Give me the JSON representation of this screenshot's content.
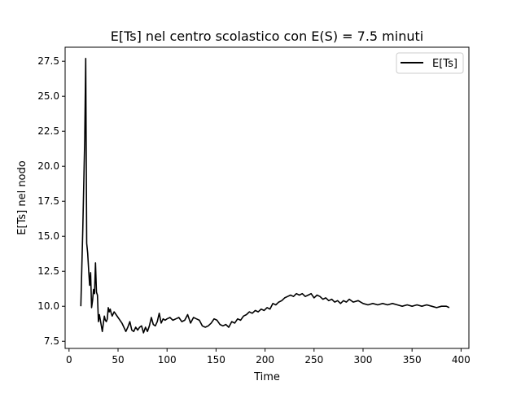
{
  "chart_data": {
    "type": "line",
    "title": "E[Ts] nel centro scolastico con E(S) = 7.5 minuti",
    "xlabel": "Time",
    "ylabel": "E[Ts] nel nodo",
    "xlim": [
      -4,
      408
    ],
    "ylim": [
      6.99,
      28.5
    ],
    "xticks": [
      0,
      50,
      100,
      150,
      200,
      250,
      300,
      350,
      400
    ],
    "xtick_labels": [
      "0",
      "50",
      "100",
      "150",
      "200",
      "250",
      "300",
      "350",
      "400"
    ],
    "yticks": [
      7.5,
      10.0,
      12.5,
      15.0,
      17.5,
      20.0,
      22.5,
      25.0,
      27.5
    ],
    "ytick_labels": [
      "7.5",
      "10.0",
      "12.5",
      "15.0",
      "17.5",
      "20.0",
      "22.5",
      "25.0",
      "27.5"
    ],
    "grid": false,
    "legend_position": "top-right",
    "series": [
      {
        "name": "E[Ts]",
        "color": "#000000",
        "x": [
          12,
          14,
          16,
          17,
          18,
          19,
          20,
          21,
          22,
          23,
          24,
          25,
          26,
          27,
          28,
          29,
          30,
          31,
          32,
          33,
          34,
          35,
          36,
          37,
          38,
          39,
          40,
          41,
          42,
          43,
          44,
          46,
          48,
          50,
          52,
          54,
          56,
          58,
          60,
          62,
          64,
          66,
          68,
          70,
          72,
          74,
          76,
          78,
          80,
          82,
          84,
          86,
          88,
          90,
          92,
          94,
          96,
          98,
          100,
          103,
          106,
          109,
          112,
          115,
          118,
          121,
          124,
          127,
          130,
          133,
          136,
          139,
          142,
          145,
          148,
          151,
          154,
          157,
          160,
          163,
          166,
          169,
          172,
          175,
          178,
          181,
          184,
          187,
          190,
          193,
          196,
          199,
          202,
          205,
          208,
          211,
          214,
          217,
          220,
          223,
          226,
          229,
          232,
          235,
          238,
          241,
          244,
          247,
          250,
          253,
          256,
          259,
          262,
          265,
          268,
          271,
          274,
          277,
          280,
          283,
          286,
          290,
          295,
          300,
          305,
          310,
          315,
          320,
          325,
          330,
          335,
          340,
          345,
          350,
          355,
          360,
          365,
          370,
          375,
          380,
          385,
          388
        ],
        "y": [
          10.0,
          15.5,
          22.0,
          27.7,
          14.5,
          13.8,
          12.6,
          11.5,
          12.4,
          9.9,
          10.4,
          11.2,
          10.9,
          13.1,
          11.0,
          10.8,
          8.9,
          9.4,
          9.0,
          8.6,
          8.2,
          8.8,
          9.3,
          9.0,
          8.9,
          9.1,
          9.9,
          9.6,
          9.8,
          9.5,
          9.3,
          9.6,
          9.4,
          9.2,
          9.0,
          8.8,
          8.5,
          8.2,
          8.5,
          8.9,
          8.3,
          8.2,
          8.5,
          8.3,
          8.5,
          8.6,
          8.1,
          8.5,
          8.2,
          8.6,
          9.2,
          8.7,
          8.6,
          8.9,
          9.5,
          8.8,
          9.1,
          9.0,
          9.1,
          9.2,
          9.0,
          9.1,
          9.2,
          8.9,
          9.0,
          9.4,
          8.8,
          9.2,
          9.1,
          9.0,
          8.6,
          8.5,
          8.6,
          8.8,
          9.1,
          9.0,
          8.7,
          8.6,
          8.7,
          8.5,
          8.9,
          8.8,
          9.1,
          9.0,
          9.3,
          9.4,
          9.6,
          9.5,
          9.7,
          9.6,
          9.8,
          9.7,
          9.9,
          9.8,
          10.2,
          10.1,
          10.3,
          10.4,
          10.6,
          10.7,
          10.8,
          10.7,
          10.9,
          10.8,
          10.9,
          10.7,
          10.8,
          10.9,
          10.6,
          10.8,
          10.7,
          10.5,
          10.6,
          10.4,
          10.5,
          10.3,
          10.4,
          10.2,
          10.4,
          10.3,
          10.5,
          10.3,
          10.4,
          10.2,
          10.1,
          10.2,
          10.1,
          10.2,
          10.1,
          10.2,
          10.1,
          10.0,
          10.1,
          10.0,
          10.1,
          10.0,
          10.1,
          10.0,
          9.9,
          10.0,
          10.0,
          9.9
        ]
      }
    ]
  }
}
